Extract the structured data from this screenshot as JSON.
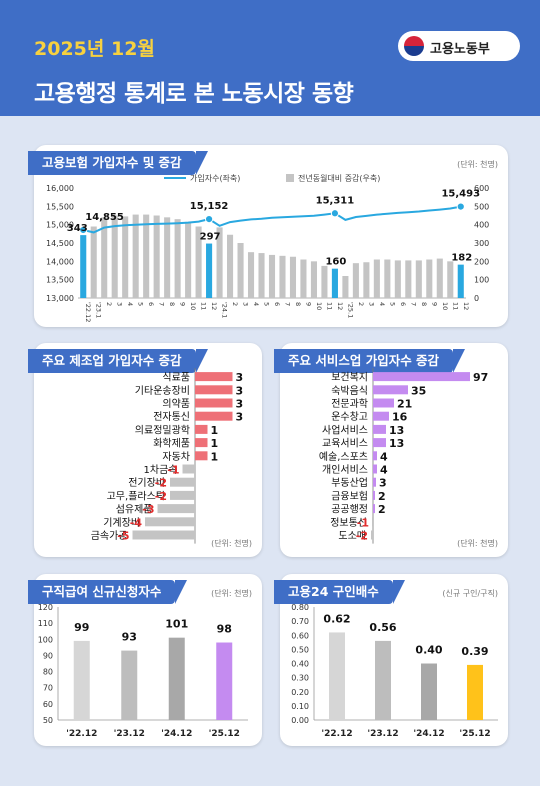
{
  "header": {
    "period": "2025년 12월",
    "title": "고용행정 통계로 본 노동시장 동향",
    "logo_name": "고용노동부"
  },
  "colors": {
    "header_bg": "#3f6ec6",
    "accent_yellow": "#f7d13f",
    "line_blue": "#29a8e0",
    "bar_gray": "#c4c4c4",
    "bar_highlight_blue": "#29a8e0",
    "bar_red": "#ee7077",
    "bar_purple": "#c48bf0",
    "bar_yellow": "#ffc21a",
    "negative_text": "#e12b2b"
  },
  "cards": {
    "insured": {
      "title": "고용보험 가입자수 및 증감",
      "unit": "(단위: 천명)"
    },
    "manufacturing": {
      "title": "주요 제조업 가입자수 증감",
      "unit": "(단위: 천명)"
    },
    "service": {
      "title": "주요 서비스업 가입자수 증감",
      "unit": "(단위: 천명)"
    },
    "jobseeker": {
      "title": "구직급여 신규신청자수",
      "unit": "(단위: 천명)"
    },
    "offers": {
      "title": "고용24 구인배수",
      "unit": "(신규 구인/구직)"
    }
  },
  "chart_data": [
    {
      "id": "insured",
      "type": "bar+line",
      "legend": [
        "가입자수(좌축)",
        "전년동월대비 증감(우축)"
      ],
      "x_labels": [
        "'22.12",
        "'23.1",
        "2",
        "3",
        "4",
        "5",
        "6",
        "7",
        "8",
        "9",
        "10",
        "11",
        "12",
        "'24.1",
        "2",
        "3",
        "4",
        "5",
        "6",
        "7",
        "8",
        "9",
        "10",
        "11",
        "12",
        "'25.1",
        "2",
        "3",
        "4",
        "5",
        "6",
        "7",
        "8",
        "9",
        "10",
        "11",
        "12"
      ],
      "highlight_indices": [
        0,
        12,
        24,
        36
      ],
      "line_values": [
        14855,
        14790,
        14920,
        14960,
        14985,
        15000,
        15010,
        15020,
        15030,
        15040,
        15055,
        15085,
        15152,
        14970,
        15070,
        15110,
        15145,
        15160,
        15190,
        15205,
        15215,
        15230,
        15245,
        15275,
        15311,
        15130,
        15210,
        15240,
        15275,
        15295,
        15320,
        15340,
        15360,
        15385,
        15410,
        15440,
        15493
      ],
      "line_labels": [
        {
          "index": 0,
          "text": "14,855"
        },
        {
          "index": 12,
          "text": "15,152"
        },
        {
          "index": 24,
          "text": "15,311"
        },
        {
          "index": 36,
          "text": "15,493"
        }
      ],
      "bar_values": [
        343,
        390,
        440,
        450,
        445,
        455,
        455,
        450,
        440,
        430,
        415,
        390,
        297,
        385,
        345,
        300,
        250,
        245,
        235,
        230,
        225,
        210,
        200,
        175,
        160,
        120,
        190,
        195,
        210,
        210,
        205,
        205,
        205,
        210,
        215,
        200,
        182
      ],
      "bar_labels": [
        {
          "index": 0,
          "text": "343"
        },
        {
          "index": 12,
          "text": "297"
        },
        {
          "index": 24,
          "text": "160"
        },
        {
          "index": 36,
          "text": "182"
        }
      ],
      "left_axis": {
        "min": 13000,
        "max": 16000,
        "ticks": [
          "13,000",
          "13,500",
          "14,000",
          "14,500",
          "15,000",
          "15,500",
          "16,000"
        ]
      },
      "right_axis": {
        "min": 0,
        "max": 600,
        "ticks": [
          "0",
          "100",
          "200",
          "300",
          "400",
          "500",
          "600"
        ]
      }
    },
    {
      "id": "manufacturing",
      "type": "bar-horizontal",
      "categories": [
        "식료품",
        "기타운송장비",
        "의약품",
        "전자통신",
        "의료정밀광학",
        "화학제품",
        "자동차",
        "1차금속",
        "전기장비",
        "고무,플라스틱",
        "섬유제품",
        "기계장비",
        "금속가공"
      ],
      "values": [
        3,
        3,
        3,
        3,
        1,
        1,
        1,
        -1,
        -2,
        -2,
        -3,
        -4,
        -5
      ],
      "labels": [
        "3",
        "3",
        "3",
        "3",
        "1",
        "1",
        "1",
        "-1",
        "-2",
        "-2",
        "-3",
        "-4",
        "-5"
      ],
      "xlim": [
        -5,
        3
      ]
    },
    {
      "id": "service",
      "type": "bar-horizontal",
      "categories": [
        "보건복지",
        "숙박음식",
        "전문과학",
        "운수창고",
        "사업서비스",
        "교육서비스",
        "예술,스포츠",
        "개인서비스",
        "부동산업",
        "금융보험",
        "공공행정",
        "정보통신",
        "도소매"
      ],
      "values": [
        97,
        35,
        21,
        16,
        13,
        13,
        4,
        4,
        3,
        2,
        2,
        -1,
        -2
      ],
      "labels": [
        "97",
        "35",
        "21",
        "16",
        "13",
        "13",
        "4",
        "4",
        "3",
        "2",
        "2",
        "-1",
        "-2"
      ],
      "xlim": [
        -2,
        97
      ]
    },
    {
      "id": "jobseeker",
      "type": "bar",
      "categories": [
        "'22.12",
        "'23.12",
        "'24.12",
        "'25.12"
      ],
      "values": [
        99,
        93,
        101,
        98
      ],
      "labels": [
        "99",
        "93",
        "101",
        "98"
      ],
      "ylim": [
        50,
        120
      ],
      "ticks": [
        "50",
        "60",
        "70",
        "80",
        "90",
        "100",
        "110",
        "120"
      ]
    },
    {
      "id": "offers",
      "type": "bar",
      "categories": [
        "'22.12",
        "'23.12",
        "'24.12",
        "'25.12"
      ],
      "values": [
        0.62,
        0.56,
        0.4,
        0.39
      ],
      "labels": [
        "0.62",
        "0.56",
        "0.40",
        "0.39"
      ],
      "ylim": [
        0,
        0.8
      ],
      "ticks": [
        "0.00",
        "0.10",
        "0.20",
        "0.30",
        "0.40",
        "0.50",
        "0.60",
        "0.70",
        "0.80"
      ]
    }
  ]
}
